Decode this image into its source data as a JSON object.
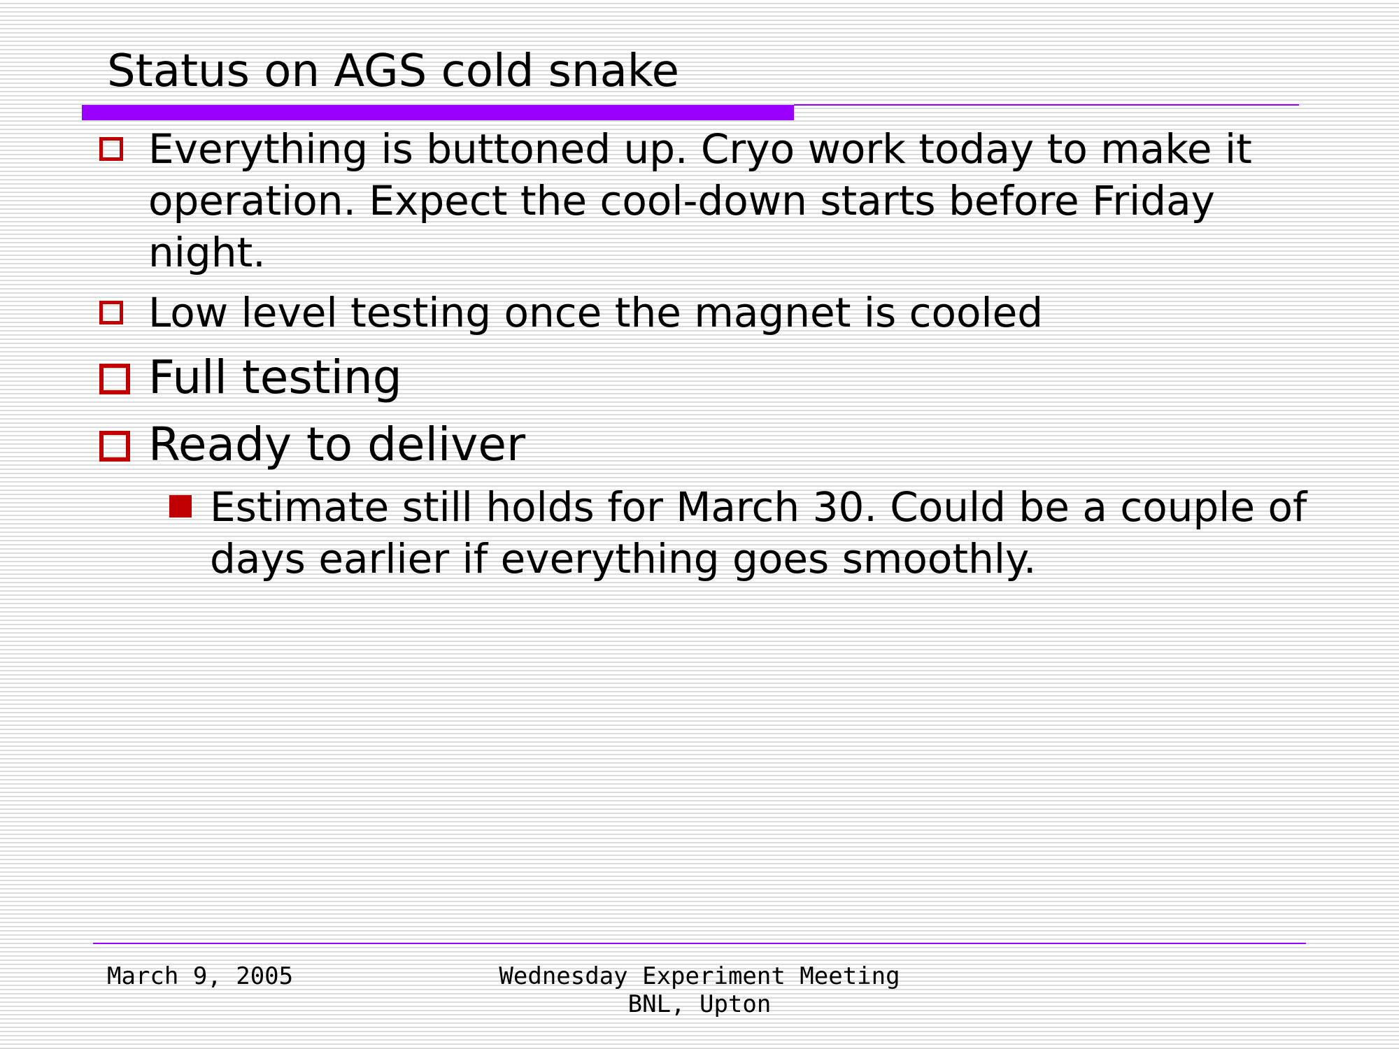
{
  "slide": {
    "title": "Status on AGS cold snake",
    "accent_color": "#9900ff",
    "bullet_color": "#c00000",
    "bullets": [
      {
        "text": "Everything is buttoned up. Cryo work today to make it operation. Expect the cool-down starts before Friday night."
      },
      {
        "text": "Low level testing once the magnet is cooled"
      },
      {
        "text": "Full testing"
      },
      {
        "text": "Ready to deliver"
      }
    ],
    "sub_bullets": [
      {
        "text": "Estimate still holds for March 30. Could be a couple of days earlier if everything goes smoothly."
      }
    ]
  },
  "footer": {
    "date": "March 9, 2005",
    "meeting": "Wednesday Experiment Meeting",
    "location": "BNL, Upton"
  }
}
